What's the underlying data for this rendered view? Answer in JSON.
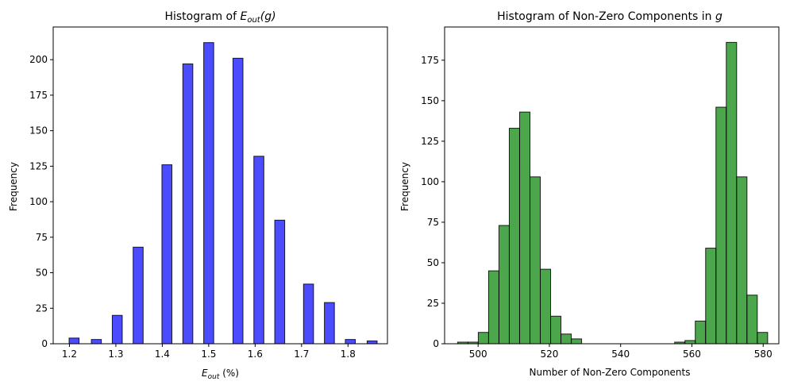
{
  "chart_data": [
    {
      "type": "bar",
      "title": {
        "prefix": "Histogram of ",
        "symbol": "E",
        "subscript": "out",
        "suffix": "(g)"
      },
      "xlabel": {
        "symbol": "E",
        "subscript": "out",
        "suffix": " (%)"
      },
      "ylabel": "Frequency",
      "xlim": [
        1.165,
        1.885
      ],
      "ylim": [
        0,
        223
      ],
      "xticks": [
        1.2,
        1.3,
        1.4,
        1.5,
        1.6,
        1.7,
        1.8
      ],
      "xtick_labels": [
        "1.2",
        "1.3",
        "1.4",
        "1.5",
        "1.6",
        "1.7",
        "1.8"
      ],
      "yticks": [
        0,
        25,
        50,
        75,
        100,
        125,
        150,
        175,
        200
      ],
      "ytick_labels": [
        "0",
        "25",
        "50",
        "75",
        "100",
        "125",
        "150",
        "175",
        "200"
      ],
      "bin_width": 0.0215,
      "bars": [
        {
          "x": 1.21,
          "value": 4
        },
        {
          "x": 1.258,
          "value": 3
        },
        {
          "x": 1.303,
          "value": 20
        },
        {
          "x": 1.348,
          "value": 68
        },
        {
          "x": 1.41,
          "value": 126
        },
        {
          "x": 1.455,
          "value": 197
        },
        {
          "x": 1.5,
          "value": 212
        },
        {
          "x": 1.563,
          "value": 201
        },
        {
          "x": 1.608,
          "value": 132
        },
        {
          "x": 1.653,
          "value": 87
        },
        {
          "x": 1.715,
          "value": 42
        },
        {
          "x": 1.76,
          "value": 29
        },
        {
          "x": 1.805,
          "value": 3
        },
        {
          "x": 1.852,
          "value": 2
        }
      ],
      "bar_color": "#0000ff",
      "bar_opacity": 0.7,
      "edge_color": "#000000",
      "grid": false
    },
    {
      "type": "bar",
      "title": {
        "prefix": "Histogram of Non-Zero Components in ",
        "symbol": "g"
      },
      "xlabel": "Number of Non-Zero Components",
      "ylabel": "Frequency",
      "xlim": [
        490.6,
        584.4
      ],
      "ylim": [
        0,
        195.5
      ],
      "xticks": [
        500,
        520,
        540,
        560,
        580
      ],
      "xtick_labels": [
        "500",
        "520",
        "540",
        "560",
        "580"
      ],
      "yticks": [
        0,
        25,
        50,
        75,
        100,
        125,
        150,
        175
      ],
      "ytick_labels": [
        "0",
        "25",
        "50",
        "75",
        "100",
        "125",
        "150",
        "175"
      ],
      "bin_width": 2.9,
      "bars": [
        {
          "x": 495.7,
          "value": 1
        },
        {
          "x": 498.6,
          "value": 1
        },
        {
          "x": 501.5,
          "value": 7
        },
        {
          "x": 504.4,
          "value": 45
        },
        {
          "x": 507.3,
          "value": 73
        },
        {
          "x": 510.2,
          "value": 133
        },
        {
          "x": 513.1,
          "value": 143
        },
        {
          "x": 516.0,
          "value": 103
        },
        {
          "x": 518.9,
          "value": 46
        },
        {
          "x": 521.8,
          "value": 17
        },
        {
          "x": 524.7,
          "value": 6
        },
        {
          "x": 527.6,
          "value": 3
        },
        {
          "x": 530.5,
          "value": 0
        },
        {
          "x": 533.4,
          "value": 0
        },
        {
          "x": 536.3,
          "value": 0
        },
        {
          "x": 539.2,
          "value": 0
        },
        {
          "x": 542.1,
          "value": 0
        },
        {
          "x": 545.0,
          "value": 0
        },
        {
          "x": 547.9,
          "value": 0
        },
        {
          "x": 550.8,
          "value": 0
        },
        {
          "x": 553.7,
          "value": 0
        },
        {
          "x": 556.6,
          "value": 1
        },
        {
          "x": 559.5,
          "value": 2
        },
        {
          "x": 562.4,
          "value": 14
        },
        {
          "x": 565.3,
          "value": 59
        },
        {
          "x": 568.2,
          "value": 146
        },
        {
          "x": 571.1,
          "value": 186
        },
        {
          "x": 574.0,
          "value": 103
        },
        {
          "x": 576.9,
          "value": 30
        },
        {
          "x": 579.8,
          "value": 7
        }
      ],
      "bar_color": "#008000",
      "bar_opacity": 0.7,
      "edge_color": "#000000",
      "grid": false
    }
  ]
}
